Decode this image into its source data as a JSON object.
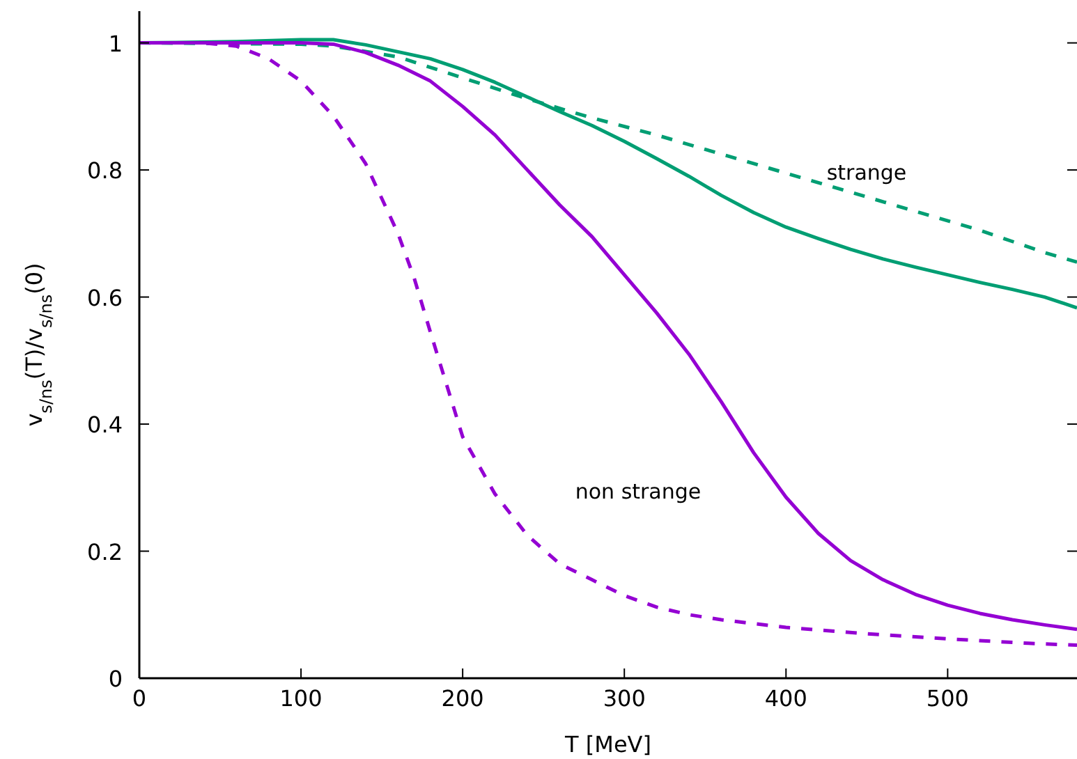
{
  "chart_data": {
    "type": "line",
    "xlabel": "T [MeV]",
    "ylabel": "v$_{s/ns}$(T)/v$_{s/ns}$(0)",
    "xlim": [
      0,
      580
    ],
    "ylim": [
      0,
      1.05
    ],
    "xticks": [
      0,
      100,
      200,
      300,
      400,
      500
    ],
    "yticks": [
      0,
      0.2,
      0.4,
      0.6,
      0.8,
      1
    ],
    "grid": false,
    "marker": "none",
    "annotations": [
      "strange",
      "non strange"
    ],
    "series": [
      {
        "color": "#009e73",
        "line_style": "solid",
        "x": [
          0,
          60,
          100,
          120,
          140,
          180,
          200,
          220,
          240,
          260,
          280,
          300,
          320,
          340,
          360,
          380,
          400,
          420,
          440,
          460,
          480,
          500,
          520,
          540,
          560,
          580
        ],
        "values": [
          1,
          1.002,
          1.005,
          1.005,
          0.997,
          0.975,
          0.958,
          0.938,
          0.915,
          0.892,
          0.87,
          0.845,
          0.818,
          0.79,
          0.76,
          0.733,
          0.71,
          0.692,
          0.675,
          0.66,
          0.647,
          0.635,
          0.623,
          0.612,
          0.6,
          0.583
        ]
      },
      {
        "color": "#009e73",
        "line_style": "dashed",
        "x": [
          0,
          100,
          120,
          160,
          200,
          240,
          280,
          320,
          360,
          400,
          440,
          480,
          520,
          560,
          580
        ],
        "values": [
          1,
          0.998,
          0.995,
          0.978,
          0.945,
          0.912,
          0.882,
          0.855,
          0.825,
          0.795,
          0.765,
          0.735,
          0.705,
          0.67,
          0.655
        ]
      },
      {
        "color": "#9400d3",
        "line_style": "solid",
        "x": [
          0,
          100,
          120,
          140,
          160,
          180,
          200,
          220,
          240,
          260,
          280,
          300,
          320,
          340,
          360,
          380,
          400,
          420,
          440,
          460,
          480,
          500,
          520,
          540,
          560,
          580
        ],
        "values": [
          1,
          1,
          0.998,
          0.985,
          0.965,
          0.94,
          0.9,
          0.855,
          0.8,
          0.745,
          0.695,
          0.635,
          0.575,
          0.51,
          0.435,
          0.355,
          0.285,
          0.228,
          0.185,
          0.155,
          0.132,
          0.115,
          0.102,
          0.092,
          0.084,
          0.077
        ]
      },
      {
        "color": "#9400d3",
        "line_style": "dashed",
        "x": [
          0,
          40,
          60,
          80,
          100,
          120,
          140,
          160,
          170,
          180,
          200,
          220,
          240,
          260,
          280,
          300,
          320,
          340,
          360,
          400,
          450,
          500,
          550,
          580
        ],
        "values": [
          1,
          1,
          0.995,
          0.975,
          0.94,
          0.885,
          0.81,
          0.7,
          0.63,
          0.545,
          0.38,
          0.29,
          0.225,
          0.18,
          0.155,
          0.13,
          0.112,
          0.1,
          0.092,
          0.08,
          0.07,
          0.062,
          0.055,
          0.052
        ]
      }
    ]
  }
}
